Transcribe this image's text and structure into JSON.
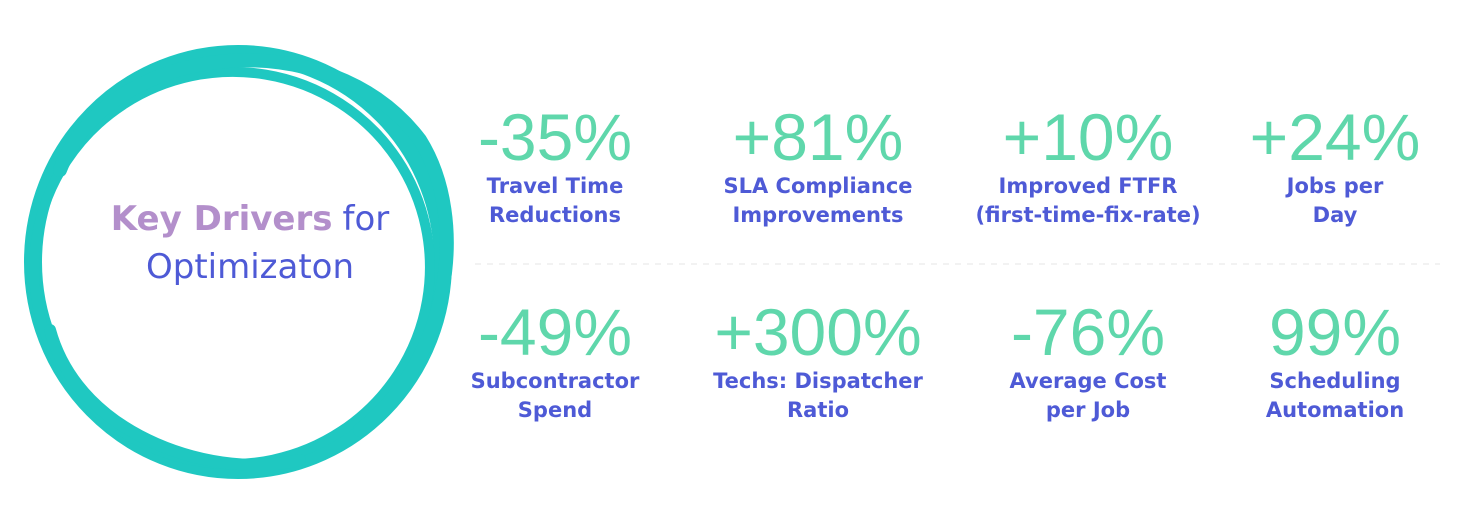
{
  "title": {
    "emphasis": "Key Drivers",
    "rest": "for",
    "line2": "Optimizaton"
  },
  "stats": [
    {
      "value": "-35%",
      "label": [
        "Travel Time",
        "Reductions"
      ]
    },
    {
      "value": "+81%",
      "label": [
        "SLA Compliance",
        "Improvements"
      ]
    },
    {
      "value": "+10%",
      "label": [
        "Improved  FTFR",
        "(first-time-fix-rate)"
      ]
    },
    {
      "value": "+24%",
      "label": [
        "Jobs per",
        "Day"
      ]
    },
    {
      "value": "-49%",
      "label": [
        "Subcontractor",
        "Spend"
      ]
    },
    {
      "value": "+300%",
      "label": [
        "Techs: Dispatcher",
        "Ratio"
      ]
    },
    {
      "value": "-76%",
      "label": [
        "Average Cost",
        "per Job"
      ]
    },
    {
      "value": "99%",
      "label": [
        "Scheduling",
        "Automation"
      ]
    }
  ]
}
